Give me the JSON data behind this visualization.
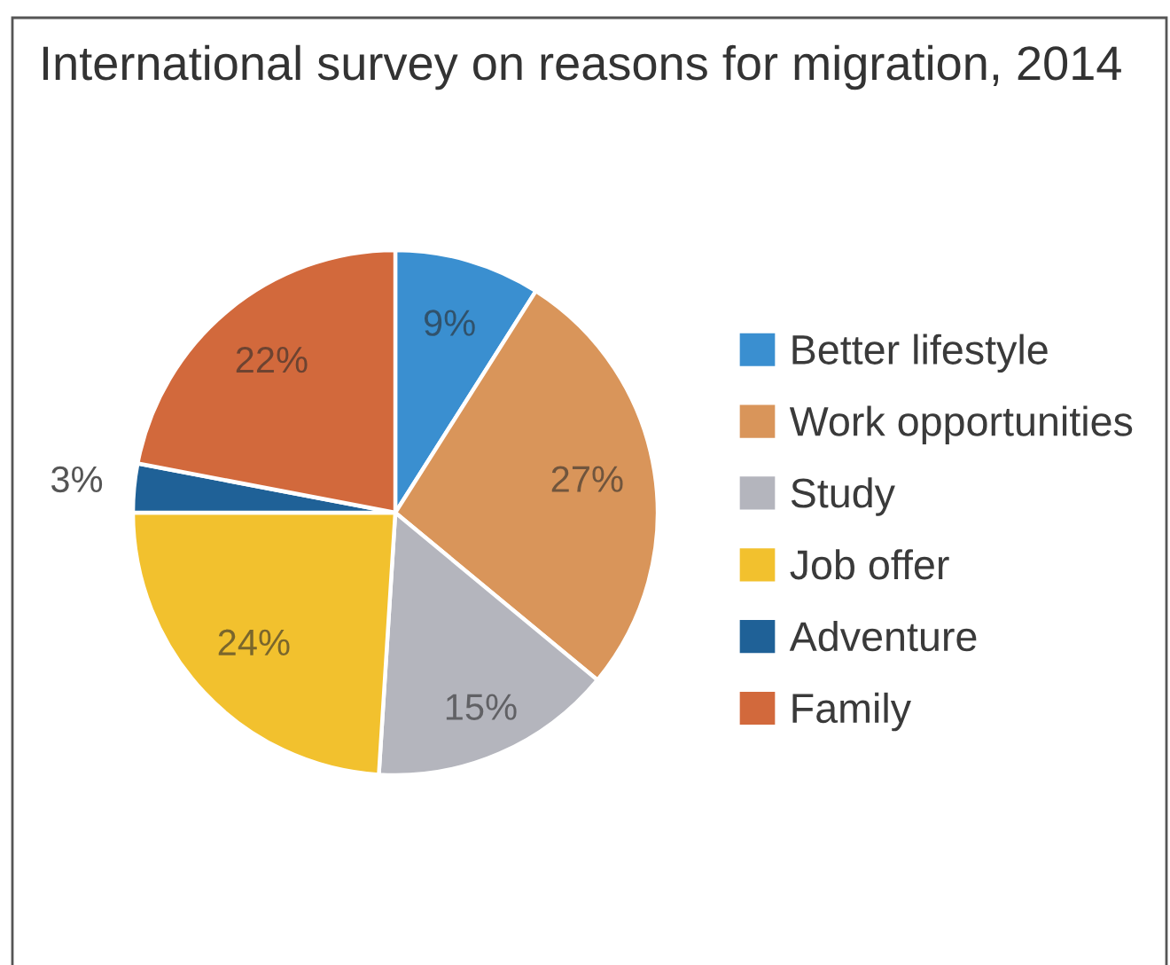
{
  "chart_data": {
    "type": "pie",
    "title": "International survey on reasons for migration, 2014",
    "categories": [
      "Better lifestyle",
      "Work opportunities",
      "Study",
      "Job offer",
      "Adventure",
      "Family"
    ],
    "values": [
      9,
      27,
      15,
      24,
      3,
      22
    ],
    "colors": [
      "#3a8fd0",
      "#d9955a",
      "#b4b5bd",
      "#f2c12e",
      "#1f6197",
      "#d2693c"
    ],
    "value_labels": [
      "9%",
      "27%",
      "15%",
      "24%",
      "3%",
      "22%"
    ],
    "legend": "right"
  }
}
